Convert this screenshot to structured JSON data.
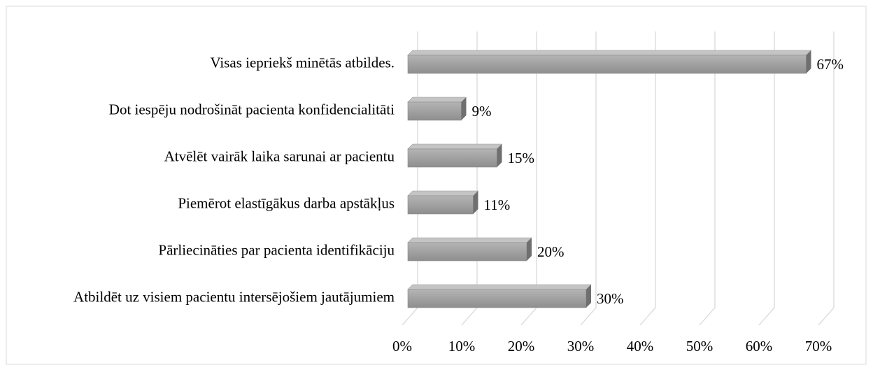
{
  "chart_data": {
    "type": "bar3d",
    "orientation": "horizontal",
    "categories": [
      "Visas iepriekš minētās atbildes.",
      "Dot iespēju nodrošināt pacienta konfidencialitāti",
      "Atvēlēt vairāk laika sarunai ar pacientu",
      "Piemērot elastīgākus darba apstākļus",
      "Pārliecināties par pacienta identifikāciju",
      "Atbildēt uz visiem pacientu intersējošiem jautājumiem"
    ],
    "values": [
      67,
      9,
      15,
      11,
      20,
      30
    ],
    "value_labels": [
      "67%",
      "9%",
      "15%",
      "11%",
      "20%",
      "30%"
    ],
    "color": "#a6a6a6",
    "xlim": [
      0,
      70
    ],
    "xticks": [
      {
        "value": 0,
        "label": "0%"
      },
      {
        "value": 10,
        "label": "10%"
      },
      {
        "value": 20,
        "label": "20%"
      },
      {
        "value": 30,
        "label": "30%"
      },
      {
        "value": 40,
        "label": "40%"
      },
      {
        "value": 50,
        "label": "50%"
      },
      {
        "value": 60,
        "label": "60%"
      },
      {
        "value": 70,
        "label": "70%"
      }
    ],
    "grid": true
  }
}
